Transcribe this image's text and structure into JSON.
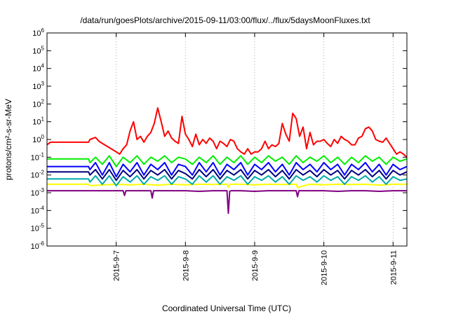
{
  "chart_data": {
    "type": "line",
    "title": "/data/run/goesPlots/archive/2015-09-11/03:00/flux/../flux/5daysMoonFluxes.txt",
    "xlabel": "Coordinated Universal Time (UTC)",
    "ylabel": "protons/cm²-s-sr-MeV",
    "yscale": "log",
    "ylim": [
      1e-06,
      1000000.0
    ],
    "xlim": [
      6.0,
      11.2
    ],
    "y_ticks": [
      {
        "base": "10",
        "exp": "-6",
        "value": 1e-06
      },
      {
        "base": "10",
        "exp": "-5",
        "value": 1e-05
      },
      {
        "base": "10",
        "exp": "-4",
        "value": 0.0001
      },
      {
        "base": "10",
        "exp": "-3",
        "value": 0.001
      },
      {
        "base": "10",
        "exp": "-2",
        "value": 0.01
      },
      {
        "base": "10",
        "exp": "-1",
        "value": 0.1
      },
      {
        "base": "10",
        "exp": "0",
        "value": 1
      },
      {
        "base": "10",
        "exp": "1",
        "value": 10
      },
      {
        "base": "10",
        "exp": "2",
        "value": 100
      },
      {
        "base": "10",
        "exp": "3",
        "value": 1000
      },
      {
        "base": "10",
        "exp": "4",
        "value": 10000
      },
      {
        "base": "10",
        "exp": "5",
        "value": 100000
      },
      {
        "base": "10",
        "exp": "6",
        "value": 1000000
      }
    ],
    "x_ticks": [
      {
        "label": "2015-9-7",
        "value": 7.0
      },
      {
        "label": "2015-9-8",
        "value": 8.0
      },
      {
        "label": "2015-9-9",
        "value": 9.0
      },
      {
        "label": "2015-9-10",
        "value": 10.0
      },
      {
        "label": "2015-9-11",
        "value": 11.0
      }
    ],
    "grid": "vertical dotted",
    "series": [
      {
        "color": "#ff0000",
        "x": [
          6.0,
          6.05,
          6.1,
          6.6,
          6.62,
          6.7,
          6.75,
          6.8,
          6.9,
          7.0,
          7.05,
          7.1,
          7.15,
          7.2,
          7.25,
          7.3,
          7.35,
          7.4,
          7.45,
          7.5,
          7.55,
          7.6,
          7.65,
          7.7,
          7.75,
          7.8,
          7.85,
          7.9,
          7.95,
          8.0,
          8.05,
          8.1,
          8.15,
          8.2,
          8.25,
          8.3,
          8.35,
          8.4,
          8.45,
          8.5,
          8.55,
          8.6,
          8.65,
          8.7,
          8.75,
          8.8,
          8.85,
          8.9,
          8.95,
          9.0,
          9.05,
          9.1,
          9.15,
          9.2,
          9.25,
          9.3,
          9.35,
          9.4,
          9.45,
          9.5,
          9.55,
          9.6,
          9.65,
          9.7,
          9.75,
          9.8,
          9.85,
          9.9,
          9.95,
          10.0,
          10.05,
          10.1,
          10.15,
          10.2,
          10.25,
          10.3,
          10.35,
          10.4,
          10.45,
          10.5,
          10.55,
          10.6,
          10.65,
          10.7,
          10.75,
          10.8,
          10.85,
          10.9,
          10.95,
          11.0,
          11.05,
          11.1,
          11.15,
          11.2
        ],
        "values": [
          0.5,
          0.7,
          0.7,
          0.7,
          1.0,
          1.3,
          0.8,
          0.6,
          0.35,
          0.2,
          0.15,
          0.3,
          0.5,
          3.0,
          10,
          1.0,
          1.5,
          0.7,
          1.5,
          2.5,
          8,
          60,
          10,
          1.5,
          3,
          1.2,
          0.8,
          0.6,
          20,
          2.0,
          1.0,
          0.4,
          2.0,
          0.5,
          1.0,
          0.6,
          1.2,
          0.8,
          0.3,
          0.8,
          0.6,
          0.4,
          1.0,
          0.8,
          0.3,
          0.2,
          0.15,
          0.3,
          0.15,
          0.2,
          0.2,
          0.3,
          0.8,
          0.3,
          0.5,
          0.4,
          0.6,
          8,
          2,
          0.8,
          30,
          15,
          1.5,
          5,
          0.3,
          2.5,
          0.5,
          0.8,
          0.8,
          1.0,
          0.6,
          0.4,
          1.0,
          0.6,
          1.5,
          1.0,
          0.8,
          0.5,
          0.5,
          1.2,
          1.5,
          4.0,
          5.0,
          3.0,
          1.0,
          0.8,
          0.7,
          1.2,
          0.6,
          0.3,
          0.15,
          0.2,
          0.15,
          0.1
        ]
      },
      {
        "color": "#00ee00",
        "x": [
          6.0,
          6.1,
          6.6,
          6.62,
          6.7,
          6.8,
          6.9,
          7.0,
          7.1,
          7.2,
          7.3,
          7.4,
          7.5,
          7.6,
          7.7,
          7.8,
          7.9,
          8.0,
          8.1,
          8.2,
          8.3,
          8.4,
          8.5,
          8.6,
          8.7,
          8.8,
          8.9,
          9.0,
          9.1,
          9.2,
          9.3,
          9.4,
          9.5,
          9.6,
          9.7,
          9.8,
          9.9,
          10.0,
          10.1,
          10.2,
          10.3,
          10.4,
          10.5,
          10.6,
          10.7,
          10.8,
          10.9,
          11.0,
          11.1,
          11.2
        ],
        "values": [
          0.08,
          0.08,
          0.08,
          0.05,
          0.1,
          0.04,
          0.12,
          0.03,
          0.1,
          0.05,
          0.12,
          0.04,
          0.1,
          0.06,
          0.12,
          0.05,
          0.1,
          0.08,
          0.04,
          0.1,
          0.05,
          0.12,
          0.04,
          0.1,
          0.05,
          0.12,
          0.04,
          0.1,
          0.05,
          0.12,
          0.06,
          0.1,
          0.04,
          0.12,
          0.05,
          0.1,
          0.06,
          0.12,
          0.05,
          0.1,
          0.04,
          0.1,
          0.05,
          0.12,
          0.06,
          0.1,
          0.04,
          0.1,
          0.06,
          0.08
        ]
      },
      {
        "color": "#0000ff",
        "x": [
          6.0,
          6.1,
          6.6,
          6.62,
          6.7,
          6.8,
          6.9,
          7.0,
          7.1,
          7.2,
          7.3,
          7.4,
          7.5,
          7.6,
          7.7,
          7.8,
          7.9,
          8.0,
          8.1,
          8.2,
          8.3,
          8.4,
          8.5,
          8.6,
          8.7,
          8.8,
          8.9,
          9.0,
          9.1,
          9.2,
          9.3,
          9.4,
          9.5,
          9.6,
          9.7,
          9.8,
          9.9,
          10.0,
          10.1,
          10.2,
          10.3,
          10.4,
          10.5,
          10.6,
          10.7,
          10.8,
          10.9,
          11.0,
          11.1,
          11.2
        ],
        "values": [
          0.03,
          0.03,
          0.03,
          0.02,
          0.05,
          0.01,
          0.05,
          0.008,
          0.04,
          0.015,
          0.05,
          0.01,
          0.04,
          0.02,
          0.05,
          0.01,
          0.04,
          0.03,
          0.01,
          0.05,
          0.015,
          0.05,
          0.01,
          0.04,
          0.02,
          0.05,
          0.01,
          0.04,
          0.02,
          0.05,
          0.015,
          0.04,
          0.01,
          0.05,
          0.02,
          0.04,
          0.015,
          0.05,
          0.02,
          0.04,
          0.01,
          0.04,
          0.02,
          0.05,
          0.015,
          0.04,
          0.01,
          0.04,
          0.02,
          0.03
        ]
      },
      {
        "color": "#000080",
        "x": [
          6.0,
          6.1,
          6.6,
          6.62,
          6.7,
          6.8,
          6.9,
          7.0,
          7.1,
          7.2,
          7.3,
          7.4,
          7.5,
          7.6,
          7.7,
          7.8,
          7.9,
          8.0,
          8.1,
          8.2,
          8.3,
          8.4,
          8.5,
          8.6,
          8.7,
          8.8,
          8.9,
          9.0,
          9.1,
          9.2,
          9.3,
          9.4,
          9.5,
          9.6,
          9.7,
          9.8,
          9.9,
          10.0,
          10.1,
          10.2,
          10.3,
          10.4,
          10.5,
          10.6,
          10.7,
          10.8,
          10.9,
          11.0,
          11.1,
          11.2
        ],
        "values": [
          0.015,
          0.015,
          0.015,
          0.01,
          0.02,
          0.006,
          0.02,
          0.005,
          0.018,
          0.008,
          0.02,
          0.006,
          0.018,
          0.01,
          0.02,
          0.006,
          0.018,
          0.012,
          0.006,
          0.02,
          0.008,
          0.02,
          0.006,
          0.018,
          0.01,
          0.02,
          0.006,
          0.018,
          0.01,
          0.02,
          0.008,
          0.018,
          0.006,
          0.02,
          0.01,
          0.018,
          0.008,
          0.02,
          0.01,
          0.018,
          0.006,
          0.018,
          0.01,
          0.02,
          0.008,
          0.018,
          0.006,
          0.018,
          0.01,
          0.015
        ]
      },
      {
        "color": "#00aaaa",
        "x": [
          6.0,
          6.1,
          6.6,
          6.62,
          6.7,
          6.8,
          6.9,
          7.0,
          7.1,
          7.2,
          7.3,
          7.4,
          7.5,
          7.6,
          7.7,
          7.8,
          7.9,
          8.0,
          8.1,
          8.2,
          8.3,
          8.4,
          8.5,
          8.6,
          8.7,
          8.8,
          8.9,
          9.0,
          9.1,
          9.2,
          9.3,
          9.4,
          9.5,
          9.6,
          9.7,
          9.8,
          9.9,
          10.0,
          10.1,
          10.2,
          10.3,
          10.4,
          10.5,
          10.6,
          10.7,
          10.8,
          10.9,
          11.0,
          11.1,
          11.2
        ],
        "values": [
          0.006,
          0.006,
          0.006,
          0.004,
          0.009,
          0.003,
          0.009,
          0.0025,
          0.008,
          0.004,
          0.009,
          0.003,
          0.008,
          0.005,
          0.009,
          0.003,
          0.008,
          0.006,
          0.003,
          0.009,
          0.004,
          0.009,
          0.003,
          0.008,
          0.005,
          0.009,
          0.003,
          0.008,
          0.005,
          0.009,
          0.004,
          0.008,
          0.003,
          0.009,
          0.005,
          0.008,
          0.004,
          0.009,
          0.005,
          0.008,
          0.003,
          0.008,
          0.005,
          0.009,
          0.004,
          0.008,
          0.003,
          0.008,
          0.005,
          0.006
        ]
      },
      {
        "color": "#ffff00",
        "x": [
          6.0,
          6.1,
          6.6,
          6.62,
          7.0,
          7.2,
          7.4,
          7.6,
          7.8,
          8.0,
          8.2,
          8.4,
          8.6,
          8.62,
          8.64,
          8.8,
          9.0,
          9.2,
          9.4,
          9.6,
          9.62,
          9.8,
          10.0,
          10.2,
          10.4,
          10.6,
          10.8,
          11.0,
          11.2
        ],
        "values": [
          0.003,
          0.003,
          0.003,
          0.0025,
          0.003,
          0.0028,
          0.003,
          0.0027,
          0.003,
          0.0028,
          0.003,
          0.0029,
          0.003,
          0.002,
          0.003,
          0.003,
          0.0028,
          0.003,
          0.0029,
          0.003,
          0.002,
          0.003,
          0.0028,
          0.003,
          0.0029,
          0.003,
          0.0027,
          0.003,
          0.003
        ]
      },
      {
        "color": "#800080",
        "x": [
          6.0,
          6.1,
          6.6,
          6.62,
          7.1,
          7.12,
          7.14,
          7.5,
          7.52,
          7.54,
          8.0,
          8.2,
          8.4,
          8.6,
          8.62,
          8.64,
          8.66,
          8.8,
          9.0,
          9.2,
          9.4,
          9.6,
          9.62,
          9.64,
          10.0,
          10.2,
          10.4,
          10.6,
          10.8,
          11.0,
          11.2
        ],
        "values": [
          0.0013,
          0.0013,
          0.0013,
          0.0013,
          0.0013,
          0.0007,
          0.0013,
          0.0013,
          0.0005,
          0.0013,
          0.0013,
          0.0012,
          0.0013,
          0.0013,
          7e-05,
          0.0012,
          0.0013,
          0.0013,
          0.0012,
          0.0013,
          0.0013,
          0.0013,
          0.0006,
          0.0013,
          0.0013,
          0.0012,
          0.0013,
          0.0013,
          0.0012,
          0.0013,
          0.0013
        ]
      }
    ]
  }
}
